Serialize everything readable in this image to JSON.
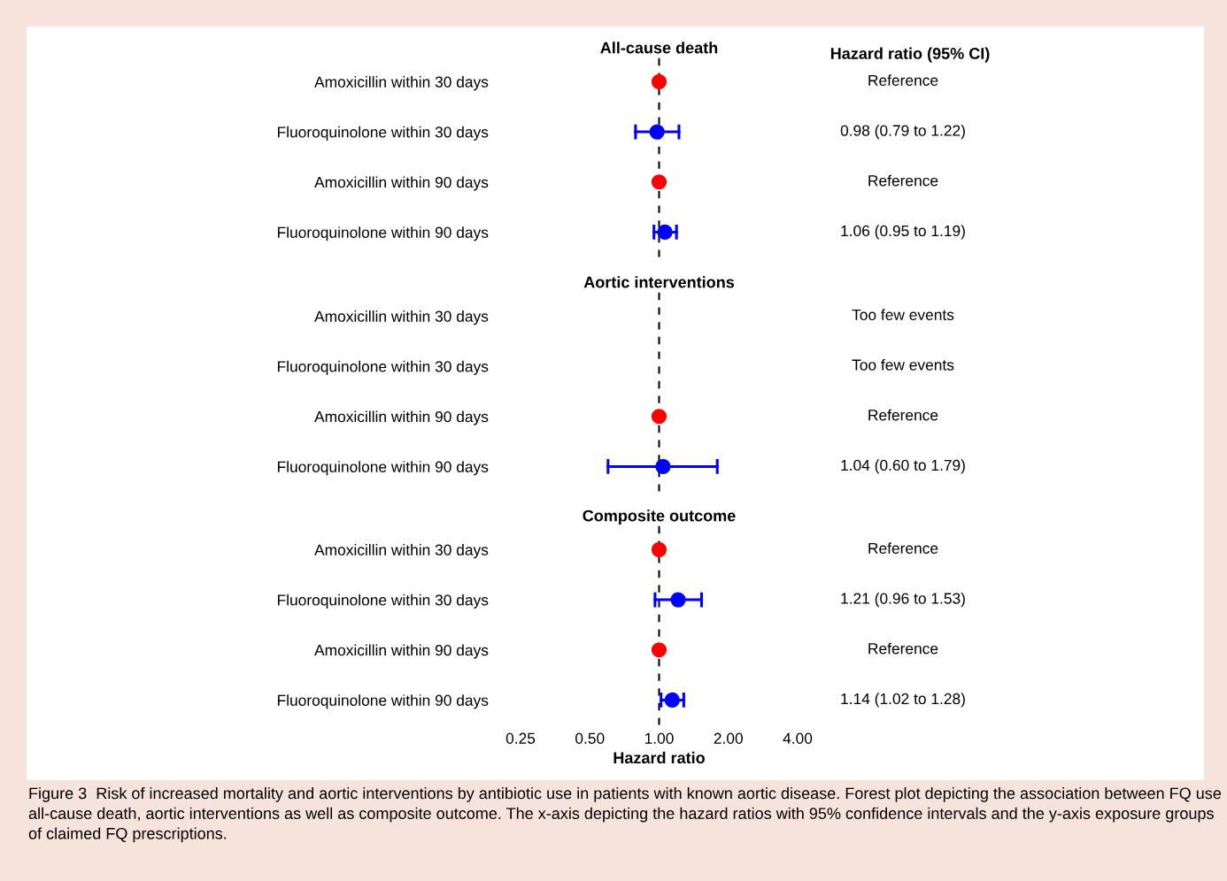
{
  "chart_data": [
    {
      "type": "scatter",
      "title": "All-cause death",
      "orientation": "horizontal",
      "categories": [
        "Amoxicillin within 30 days",
        "Fluoroquinolone within 30 days",
        "Amoxicillin within 90 days",
        "Fluoroquinolone within 90 days"
      ],
      "values": [
        1,
        0.98,
        1,
        1.06
      ],
      "colors": [
        "#ff0000",
        "#0000ff",
        "#ff0000",
        "#0000ff"
      ],
      "errors": [
        null,
        [
          0.79,
          1.22
        ],
        null,
        [
          0.95,
          1.19
        ]
      ],
      "xlim": [
        0.25,
        4
      ],
      "log": "x",
      "marker": "circle",
      "grid": false,
      "tick_labels": "y",
      "ref_lines": [
        {
          "axis": "x",
          "value": 1,
          "line_style": "dashed",
          "color": "#000000"
        }
      ],
      "annotations": [
        "Reference",
        "0.98 (0.79 to 1.22)",
        "Reference",
        "1.06 (0.95 to 1.19)",
        "Hazard ratio (95% CI)"
      ]
    },
    {
      "type": "scatter",
      "title": "Aortic interventions",
      "orientation": "horizontal",
      "categories": [
        "Amoxicillin within 30 days",
        "Fluoroquinolone within 30 days",
        "Amoxicillin within 90 days",
        "Fluoroquinolone within 90 days"
      ],
      "values": [
        null,
        null,
        1,
        1.04
      ],
      "colors": [
        "#ff0000",
        "#0000ff",
        "#ff0000",
        "#0000ff"
      ],
      "errors": [
        null,
        null,
        null,
        [
          0.6,
          1.79
        ]
      ],
      "xlim": [
        0.25,
        4
      ],
      "log": "x",
      "marker": "circle",
      "grid": false,
      "tick_labels": "y",
      "ref_lines": [
        {
          "axis": "x",
          "value": 1,
          "line_style": "dashed",
          "color": "#000000"
        }
      ],
      "annotations": [
        "Too few events",
        "Too few events",
        "Reference",
        "1.04 (0.60 to 1.79)"
      ]
    },
    {
      "type": "scatter",
      "title": "Composite outcome",
      "xlabel": "Hazard ratio",
      "orientation": "horizontal",
      "categories": [
        "Amoxicillin within 30 days",
        "Fluoroquinolone within 30 days",
        "Amoxicillin within 90 days",
        "Fluoroquinolone within 90 days"
      ],
      "values": [
        1,
        1.21,
        1,
        1.14
      ],
      "colors": [
        "#ff0000",
        "#0000ff",
        "#ff0000",
        "#0000ff"
      ],
      "errors": [
        null,
        [
          0.96,
          1.53
        ],
        null,
        [
          1.02,
          1.28
        ]
      ],
      "xlim": [
        0.25,
        4
      ],
      "xticks": [
        {
          "value": 0.25,
          "label": "0.25"
        },
        {
          "value": 0.5,
          "label": "0.50"
        },
        {
          "value": 1,
          "label": "1.00"
        },
        {
          "value": 2,
          "label": "2.00"
        },
        {
          "value": 4,
          "label": "4.00"
        }
      ],
      "log": "x",
      "marker": "circle",
      "grid": false,
      "ref_lines": [
        {
          "axis": "x",
          "value": 1,
          "line_style": "dashed",
          "color": "#000000"
        }
      ],
      "annotations": [
        "Reference",
        "1.21 (0.96 to 1.53)",
        "Reference",
        "1.14 (1.02 to 1.28)",
        "Figure 3  Risk of increased mortality and aortic interventions by antibiotic use in patients with known aortic disease. Forest plot depicting the association between FQ use all-cause death, aortic interventions as well as composite outcome. The x-axis depicting the hazard ratios with 95% confidence intervals and the y-axis exposure groups of claimed FQ prescriptions."
      ]
    }
  ]
}
